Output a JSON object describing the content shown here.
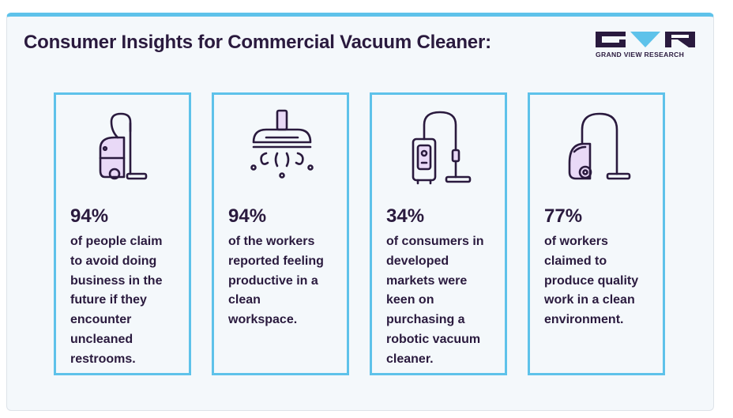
{
  "title": "Consumer Insights for Commercial Vacuum Cleaner:",
  "logo": {
    "text": "GRAND VIEW RESEARCH"
  },
  "colors": {
    "accent": "#5ec2ea",
    "text": "#2a1a3e",
    "icon_fill": "#e9d9f7",
    "background": "#f4f8fb"
  },
  "cards": [
    {
      "icon": "canister-vacuum-icon",
      "stat": "94%",
      "lines": [
        "of people claim",
        "to avoid doing",
        "business in the",
        "future if they",
        "encounter",
        "uncleaned",
        "restrooms."
      ]
    },
    {
      "icon": "vacuum-head-icon",
      "stat": "94%",
      "lines": [
        "of the workers",
        "reported feeling",
        "productive in a",
        "clean",
        "workspace."
      ]
    },
    {
      "icon": "upright-vacuum-icon",
      "stat": "34%",
      "lines": [
        "of consumers in",
        "developed",
        "markets were",
        "keen on",
        "purchasing a",
        "robotic vacuum",
        "cleaner."
      ]
    },
    {
      "icon": "cylinder-vacuum-icon",
      "stat": "77%",
      "lines": [
        "of workers",
        "claimed to",
        "produce quality",
        "work in a clean",
        "environment."
      ]
    }
  ]
}
